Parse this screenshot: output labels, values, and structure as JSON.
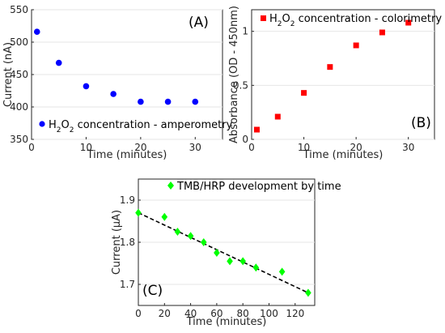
{
  "chart_data": [
    {
      "id": "A",
      "type": "scatter",
      "panel_label": "(A)",
      "xlabel": "Time (minutes)",
      "ylabel": "Current (nA)",
      "xlim": [
        0,
        35
      ],
      "ylim": [
        350,
        550
      ],
      "xticks": [
        0,
        10,
        20,
        30
      ],
      "yticks": [
        350,
        400,
        450,
        500,
        550
      ],
      "grid": true,
      "legend_position": "bottom-left",
      "legend_main": "H",
      "legend_sub": "2",
      "legend_mid": "O",
      "legend_sub2": "2",
      "legend_tail": " concentration - amperometry",
      "marker": "circle",
      "color": "#0000ff",
      "series": [
        {
          "x": [
            1,
            5,
            10,
            15,
            20,
            25,
            30
          ],
          "y": [
            516,
            468,
            432,
            420,
            408,
            408,
            408
          ]
        }
      ]
    },
    {
      "id": "B",
      "type": "scatter",
      "panel_label": "(B)",
      "xlabel": "Time (minutes)",
      "ylabel": "Absorbance (OD - 450nm)",
      "xlim": [
        0,
        35
      ],
      "ylim": [
        0,
        1.2
      ],
      "xticks": [
        0,
        10,
        20,
        30
      ],
      "yticks": [
        0,
        0.5,
        1
      ],
      "ytick_labels": [
        "0",
        "0.5",
        "1"
      ],
      "grid": true,
      "legend_position": "top-left",
      "legend_main": "H",
      "legend_sub": "2",
      "legend_mid": "O",
      "legend_sub2": "2",
      "legend_tail": " concentration - colorimetry",
      "marker": "square",
      "color": "#ff0000",
      "series": [
        {
          "x": [
            1,
            5,
            10,
            15,
            20,
            25,
            30
          ],
          "y": [
            0.09,
            0.21,
            0.43,
            0.67,
            0.87,
            0.99,
            1.08
          ]
        }
      ]
    },
    {
      "id": "C",
      "type": "scatter",
      "panel_label": "(C)",
      "xlabel": "Time (minutes)",
      "ylabel": "Current (μA)",
      "xlim": [
        0,
        135
      ],
      "ylim": [
        1.65,
        1.95
      ],
      "xticks": [
        0,
        20,
        40,
        60,
        80,
        100,
        120
      ],
      "yticks": [
        1.7,
        1.8,
        1.9
      ],
      "grid": true,
      "legend_position": "top-right",
      "legend_text": "TMB/HRP development by time",
      "marker": "diamond",
      "color": "#00ff00",
      "series": [
        {
          "x": [
            0,
            20,
            30,
            40,
            50,
            60,
            70,
            80,
            90,
            110,
            130
          ],
          "y": [
            1.87,
            1.86,
            1.825,
            1.815,
            1.8,
            1.775,
            1.755,
            1.755,
            1.74,
            1.73,
            1.68
          ]
        }
      ],
      "trendline": {
        "x": [
          0,
          130
        ],
        "y": [
          1.87,
          1.68
        ],
        "style": "dashed",
        "color": "#000000"
      }
    }
  ]
}
